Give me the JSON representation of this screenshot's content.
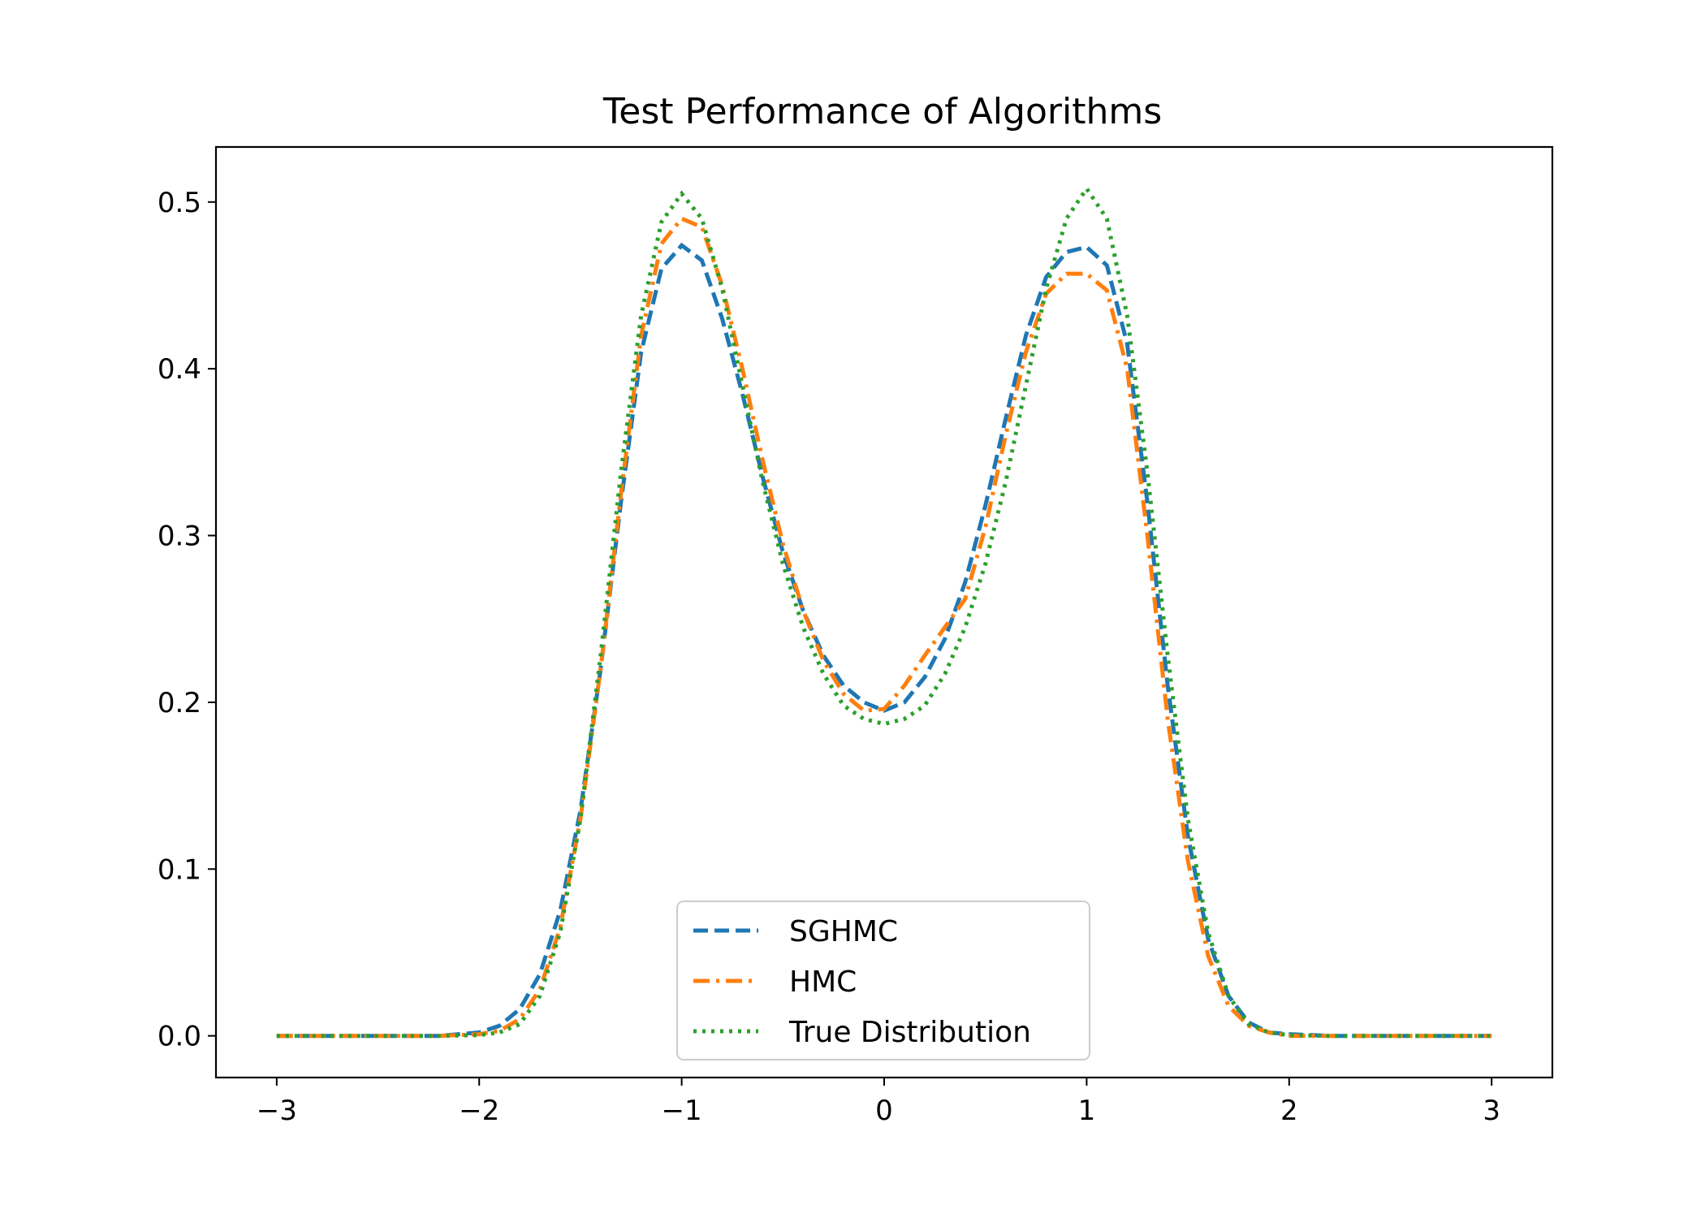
{
  "chart_data": {
    "type": "line",
    "title": "Test Performance of Algorithms",
    "xlabel": "",
    "ylabel": "",
    "xlim": [
      -3.3,
      3.3
    ],
    "ylim": [
      -0.025,
      0.533
    ],
    "xticks": [
      -3,
      -2,
      -1,
      0,
      1,
      2,
      3
    ],
    "xtick_labels": [
      "−3",
      "−2",
      "−1",
      "0",
      "1",
      "2",
      "3"
    ],
    "yticks": [
      0.0,
      0.1,
      0.2,
      0.3,
      0.4,
      0.5
    ],
    "ytick_labels": [
      "0.0",
      "0.1",
      "0.2",
      "0.3",
      "0.4",
      "0.5"
    ],
    "grid": false,
    "legend_position": "bottom-center",
    "x": [
      -3.0,
      -2.5,
      -2.2,
      -2.0,
      -1.9,
      -1.8,
      -1.7,
      -1.6,
      -1.5,
      -1.4,
      -1.3,
      -1.2,
      -1.1,
      -1.0,
      -0.9,
      -0.8,
      -0.7,
      -0.6,
      -0.5,
      -0.4,
      -0.3,
      -0.2,
      -0.1,
      0.0,
      0.1,
      0.2,
      0.3,
      0.4,
      0.5,
      0.6,
      0.7,
      0.8,
      0.9,
      1.0,
      1.1,
      1.2,
      1.3,
      1.4,
      1.5,
      1.6,
      1.7,
      1.8,
      1.9,
      2.0,
      2.2,
      2.5,
      3.0
    ],
    "series": [
      {
        "name": "SGHMC",
        "color": "#1f77b4",
        "dash": "dashed",
        "values": [
          0.0,
          0.0,
          0.0,
          0.002,
          0.006,
          0.016,
          0.037,
          0.075,
          0.135,
          0.22,
          0.32,
          0.41,
          0.46,
          0.474,
          0.465,
          0.43,
          0.385,
          0.335,
          0.29,
          0.255,
          0.228,
          0.21,
          0.2,
          0.195,
          0.2,
          0.215,
          0.238,
          0.272,
          0.318,
          0.37,
          0.42,
          0.455,
          0.47,
          0.473,
          0.462,
          0.415,
          0.32,
          0.21,
          0.12,
          0.058,
          0.024,
          0.008,
          0.002,
          0.001,
          0.0,
          0.0,
          0.0
        ]
      },
      {
        "name": "HMC",
        "color": "#ff7f0e",
        "dash": "dashdot",
        "values": [
          0.0,
          0.0,
          0.0,
          0.001,
          0.003,
          0.01,
          0.028,
          0.065,
          0.13,
          0.22,
          0.325,
          0.42,
          0.475,
          0.49,
          0.485,
          0.45,
          0.4,
          0.345,
          0.295,
          0.255,
          0.225,
          0.205,
          0.195,
          0.196,
          0.21,
          0.228,
          0.245,
          0.262,
          0.305,
          0.36,
          0.41,
          0.445,
          0.457,
          0.457,
          0.447,
          0.4,
          0.3,
          0.19,
          0.105,
          0.048,
          0.018,
          0.006,
          0.002,
          0.0,
          0.0,
          0.0,
          0.0
        ]
      },
      {
        "name": "True Distribution",
        "color": "#2ca02c",
        "dash": "dotted",
        "values": [
          0.0,
          0.0,
          0.0,
          0.0004,
          0.002,
          0.007,
          0.024,
          0.062,
          0.13,
          0.228,
          0.338,
          0.432,
          0.488,
          0.505,
          0.49,
          0.448,
          0.39,
          0.332,
          0.283,
          0.245,
          0.217,
          0.198,
          0.19,
          0.187,
          0.19,
          0.198,
          0.217,
          0.245,
          0.283,
          0.332,
          0.39,
          0.448,
          0.49,
          0.508,
          0.49,
          0.432,
          0.338,
          0.228,
          0.13,
          0.062,
          0.024,
          0.007,
          0.002,
          0.0004,
          0.0,
          0.0,
          0.0
        ]
      }
    ]
  }
}
